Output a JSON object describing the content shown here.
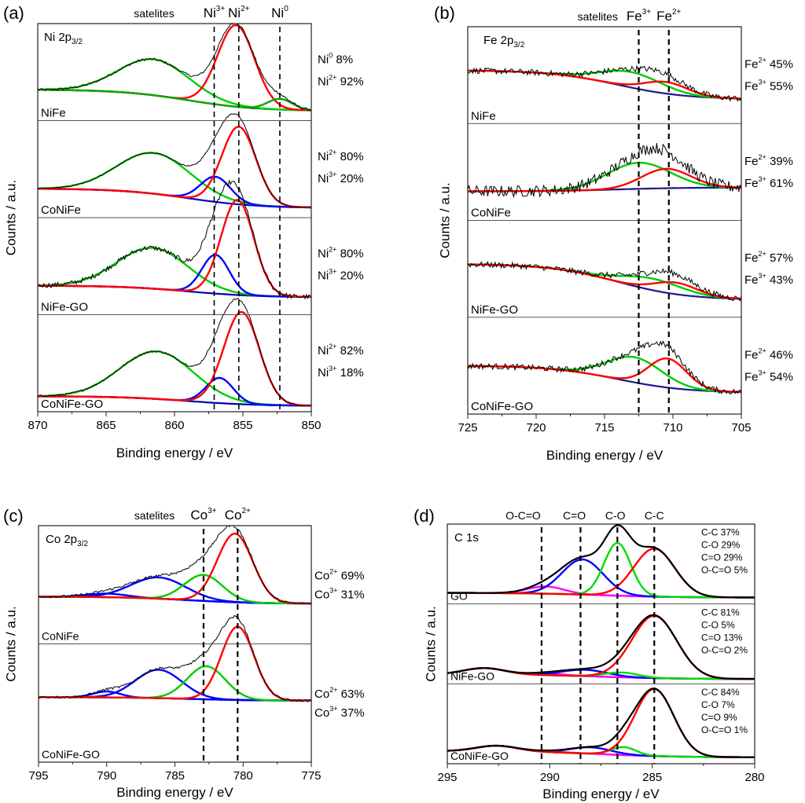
{
  "chart_data": [
    {
      "id": "a",
      "type": "line",
      "panel_label": "(a)",
      "title": "Ni 2p3/2",
      "title_main": "Ni 2p",
      "title_sub": "3/2",
      "xlabel": "Binding energy / eV",
      "ylabel": "Counts / a.u.",
      "xlim": [
        870,
        850
      ],
      "xticks": [
        870,
        865,
        860,
        855,
        850
      ],
      "header_labels": [
        {
          "text": "satelites",
          "sup": "",
          "x": 861.5,
          "color": "#000000",
          "small": true
        },
        {
          "text": "Ni",
          "sup": "3+",
          "x": 857.1,
          "color": "#000000"
        },
        {
          "text": "Ni",
          "sup": "2+",
          "x": 855.3,
          "color": "#000000"
        },
        {
          "text": "Ni",
          "sup": "0",
          "x": 852.3,
          "color": "#000000"
        }
      ],
      "reference_lines": [
        857.1,
        855.3,
        852.3
      ],
      "samples": [
        {
          "name": "NiFe",
          "baseline": {
            "left": 0.32,
            "right": 0.1,
            "color": "#1a1a1a"
          },
          "noise": 0.012,
          "peaks": [
            {
              "label": "satellite",
              "center": 861.5,
              "width": 2.6,
              "height": 0.37,
              "color": "#00cc00"
            },
            {
              "label": "Ni2+",
              "center": 855.5,
              "width": 1.35,
              "height": 0.84,
              "color": "#ff0000"
            },
            {
              "label": "Ni0",
              "center": 852.3,
              "width": 0.9,
              "height": 0.11,
              "color": "#00aa00"
            }
          ],
          "annotations": [
            {
              "species": "Ni",
              "sup": "0",
              "value": "8%"
            },
            {
              "species": "Ni",
              "sup": "2+",
              "value": "92%"
            }
          ]
        },
        {
          "name": "CoNiFe",
          "baseline": {
            "left": 0.3,
            "right": 0.1,
            "color": "#0000cc"
          },
          "noise": 0.006,
          "peaks": [
            {
              "label": "satellite",
              "center": 861.5,
              "width": 2.7,
              "height": 0.42,
              "color": "#00cc00"
            },
            {
              "label": "Ni3+",
              "center": 857.0,
              "width": 1.1,
              "height": 0.26,
              "color": "#0000ff"
            },
            {
              "label": "Ni2+",
              "center": 855.3,
              "width": 1.25,
              "height": 0.8,
              "color": "#ff0000"
            }
          ],
          "annotations": [
            {
              "species": "Ni",
              "sup": "2+",
              "value": "80%"
            },
            {
              "species": "Ni",
              "sup": "3+",
              "value": "20%"
            }
          ]
        },
        {
          "name": "NiFe-GO",
          "baseline": {
            "left": 0.3,
            "right": 0.18,
            "color": "#0000aa"
          },
          "noise": 0.025,
          "peaks": [
            {
              "label": "satellite",
              "center": 861.6,
              "width": 2.6,
              "height": 0.42,
              "color": "#00cc00"
            },
            {
              "label": "Ni3+",
              "center": 857.0,
              "width": 1.0,
              "height": 0.4,
              "color": "#0000ff"
            },
            {
              "label": "Ni2+",
              "center": 855.4,
              "width": 1.2,
              "height": 0.98,
              "color": "#ff0000"
            }
          ],
          "annotations": [
            {
              "species": "Ni",
              "sup": "2+",
              "value": "80%"
            },
            {
              "species": "Ni",
              "sup": "3+",
              "value": "20%"
            }
          ]
        },
        {
          "name": "CoNiFe-GO",
          "baseline": {
            "left": 0.16,
            "right": 0.06,
            "color": "#0000aa"
          },
          "noise": 0.01,
          "peaks": [
            {
              "label": "satellite",
              "center": 861.3,
              "width": 2.7,
              "height": 0.49,
              "color": "#00cc00"
            },
            {
              "label": "Ni3+",
              "center": 856.7,
              "width": 1.0,
              "height": 0.26,
              "color": "#0000ff"
            },
            {
              "label": "Ni2+",
              "center": 855.1,
              "width": 1.3,
              "height": 0.95,
              "color": "#ff0000"
            }
          ],
          "annotations": [
            {
              "species": "Ni",
              "sup": "2+",
              "value": "82%"
            },
            {
              "species": "Ni",
              "sup": "3+",
              "value": "18%"
            }
          ]
        }
      ]
    },
    {
      "id": "b",
      "type": "line",
      "panel_label": "(b)",
      "title": "Fe 2p3/2",
      "title_main": "Fe 2p",
      "title_sub": "3/2",
      "xlabel": "Binding energy / eV",
      "ylabel": "Counts / a.u.",
      "xlim": [
        725,
        705
      ],
      "xticks": [
        725,
        720,
        715,
        710,
        705
      ],
      "header_labels": [
        {
          "text": "satelites",
          "sup": "",
          "x": 715.5,
          "color": "#000000",
          "small": true
        },
        {
          "text": "Fe",
          "sup": "3+",
          "x": 712.5,
          "color": "#000000"
        },
        {
          "text": "Fe",
          "sup": "2+",
          "x": 710.3,
          "color": "#000000"
        }
      ],
      "reference_lines": [
        712.5,
        710.3
      ],
      "samples": [
        {
          "name": "NiFe",
          "baseline": {
            "left": 0.55,
            "right": 0.25,
            "color": "#1a1a8a"
          },
          "noise": 0.03,
          "peaks": [
            {
              "label": "Fe3+",
              "center": 713.0,
              "width": 2.2,
              "height": 0.16,
              "color": "#00cc00"
            },
            {
              "label": "Fe2+",
              "center": 710.5,
              "width": 1.6,
              "height": 0.12,
              "color": "#ff0000"
            }
          ],
          "annotations": [
            {
              "species": "Fe",
              "sup": "2+",
              "value": "45%"
            },
            {
              "species": "Fe",
              "sup": "3+",
              "value": "55%"
            }
          ]
        },
        {
          "name": "CoNiFe",
          "baseline": {
            "left": 0.3,
            "right": 0.34,
            "color": "#1a1a8a"
          },
          "noise": 0.06,
          "peaks": [
            {
              "label": "Fe3+",
              "center": 712.5,
              "width": 2.3,
              "height": 0.27,
              "color": "#00cc00"
            },
            {
              "label": "Fe2+",
              "center": 710.5,
              "width": 1.8,
              "height": 0.2,
              "color": "#ff0000"
            }
          ],
          "annotations": [
            {
              "species": "Fe",
              "sup": "2+",
              "value": "39%"
            },
            {
              "species": "Fe",
              "sup": "3+",
              "value": "61%"
            }
          ]
        },
        {
          "name": "NiFe-GO",
          "baseline": {
            "left": 0.55,
            "right": 0.18,
            "color": "#1a1a8a"
          },
          "noise": 0.03,
          "peaks": [
            {
              "label": "Fe3+",
              "center": 711.5,
              "width": 2.2,
              "height": 0.12,
              "color": "#00cc00"
            },
            {
              "label": "Fe2+",
              "center": 709.8,
              "width": 1.6,
              "height": 0.12,
              "color": "#ff0000"
            }
          ],
          "annotations": [
            {
              "species": "Fe",
              "sup": "2+",
              "value": "57%"
            },
            {
              "species": "Fe",
              "sup": "3+",
              "value": "43%"
            }
          ]
        },
        {
          "name": "CoNiFe-GO",
          "baseline": {
            "left": 0.5,
            "right": 0.22,
            "color": "#1a1a8a"
          },
          "noise": 0.03,
          "peaks": [
            {
              "label": "Fe3+",
              "center": 712.8,
              "width": 2.0,
              "height": 0.26,
              "color": "#00cc00"
            },
            {
              "label": "Fe2+",
              "center": 710.4,
              "width": 1.4,
              "height": 0.3,
              "color": "#ff0000"
            }
          ],
          "annotations": [
            {
              "species": "Fe",
              "sup": "2+",
              "value": "46%"
            },
            {
              "species": "Fe",
              "sup": "3+",
              "value": "54%"
            }
          ]
        }
      ]
    },
    {
      "id": "c",
      "type": "line",
      "panel_label": "(c)",
      "title": "Co 2p3/2",
      "title_main": "Co 2p",
      "title_sub": "3/2",
      "xlabel": "Binding energy / eV",
      "ylabel": "Counts / a.u.",
      "xlim": [
        795,
        775
      ],
      "xticks": [
        795,
        790,
        785,
        780,
        775
      ],
      "header_labels": [
        {
          "text": "satelites",
          "sup": "",
          "x": 786.5,
          "color": "#000000",
          "small": true
        },
        {
          "text": "Co",
          "sup": "3+",
          "x": 782.9,
          "color": "#000000"
        },
        {
          "text": "Co",
          "sup": "2+",
          "x": 780.4,
          "color": "#000000"
        }
      ],
      "reference_lines": [
        782.9,
        780.4
      ],
      "samples": [
        {
          "name": "CoNiFe",
          "baseline": {
            "left": 0.4,
            "right": 0.34,
            "color": "#0000aa"
          },
          "noise": 0.01,
          "peaks": [
            {
              "label": "satellite-2",
              "center": 790.0,
              "width": 1.5,
              "height": 0.03,
              "color": "#0000ff"
            },
            {
              "label": "satellite",
              "center": 786.2,
              "width": 2.0,
              "height": 0.18,
              "color": "#0000ff"
            },
            {
              "label": "Co3+",
              "center": 782.9,
              "width": 1.4,
              "height": 0.22,
              "color": "#00cc00"
            },
            {
              "label": "Co2+",
              "center": 780.6,
              "width": 1.3,
              "height": 0.58,
              "color": "#ff0000"
            }
          ],
          "annotations": [
            {
              "species": "Co",
              "sup": "2+",
              "value": "69%"
            },
            {
              "species": "Co",
              "sup": "3+",
              "value": "31%"
            }
          ]
        },
        {
          "name": "CoNiFe-GO",
          "baseline": {
            "left": 0.55,
            "right": 0.52,
            "color": "#0000aa"
          },
          "noise": 0.01,
          "peaks": [
            {
              "label": "satellite-2",
              "center": 790.0,
              "width": 1.0,
              "height": 0.05,
              "color": "#0000ff"
            },
            {
              "label": "satellite",
              "center": 786.2,
              "width": 1.7,
              "height": 0.24,
              "color": "#0000ff"
            },
            {
              "label": "Co3+",
              "center": 782.7,
              "width": 1.4,
              "height": 0.28,
              "color": "#00cc00"
            },
            {
              "label": "Co2+",
              "center": 780.4,
              "width": 1.2,
              "height": 0.62,
              "color": "#ff0000"
            }
          ],
          "annotations": [
            {
              "species": "Co",
              "sup": "2+",
              "value": "63%"
            },
            {
              "species": "Co",
              "sup": "3+",
              "value": "37%"
            }
          ]
        }
      ]
    },
    {
      "id": "d",
      "type": "line",
      "panel_label": "(d)",
      "title": "C 1s",
      "title_main": "C 1s",
      "title_sub": "",
      "xlabel": "Binding energy / eV",
      "ylabel": "Counts / a.u.",
      "xlim": [
        295,
        280
      ],
      "xticks": [
        295,
        290,
        285,
        280
      ],
      "header_labels": [
        {
          "text": "O-C=O",
          "sup": "",
          "x": 291.3,
          "color": "#ff00ff"
        },
        {
          "text": "C=O",
          "sup": "",
          "x": 288.8,
          "color": "#0000ff"
        },
        {
          "text": "C-O",
          "sup": "",
          "x": 286.8,
          "color": "#00dd00"
        },
        {
          "text": "C-C",
          "sup": "",
          "x": 284.9,
          "color": "#ff0000"
        }
      ],
      "reference_lines": [
        290.4,
        288.5,
        286.7,
        284.9
      ],
      "samples": [
        {
          "name": "GO",
          "baseline": {
            "left": 0.14,
            "right": 0.08,
            "color": "#cc00cc"
          },
          "noise": 0.0,
          "peaks": [
            {
              "label": "O-C=O",
              "center": 290.2,
              "width": 0.9,
              "height": 0.09,
              "color": "#ff00ff"
            },
            {
              "label": "C=O",
              "center": 288.4,
              "width": 1.0,
              "height": 0.44,
              "color": "#0000ff"
            },
            {
              "label": "C-O",
              "center": 286.7,
              "width": 0.65,
              "height": 0.66,
              "color": "#00dd00"
            },
            {
              "label": "C-C",
              "center": 284.9,
              "width": 1.0,
              "height": 0.6,
              "color": "#ff0000"
            }
          ],
          "annotations": [
            {
              "species": "C-C",
              "sup": "",
              "value": "37%"
            },
            {
              "species": "C-O",
              "sup": "",
              "value": "29%"
            },
            {
              "species": "C=O",
              "sup": "",
              "value": "29%"
            },
            {
              "species": "O-C=O",
              "sup": "",
              "value": "5%"
            }
          ]
        },
        {
          "name": "NiFe-GO",
          "baseline": {
            "left": 0.12,
            "right": 0.06,
            "color": "#cc00cc"
          },
          "noise": 0.0,
          "hump": {
            "center": 293.2,
            "width": 1.0,
            "height": 0.08
          },
          "peaks": [
            {
              "label": "O-C=O",
              "center": 290.2,
              "width": 0.9,
              "height": 0.02,
              "color": "#ff00ff"
            },
            {
              "label": "C=O",
              "center": 288.3,
              "width": 1.1,
              "height": 0.08,
              "color": "#0000ff"
            },
            {
              "label": "C-O",
              "center": 286.5,
              "width": 0.8,
              "height": 0.06,
              "color": "#00dd00"
            },
            {
              "label": "C-C",
              "center": 284.9,
              "width": 1.1,
              "height": 0.78,
              "color": "#ff0000"
            }
          ],
          "annotations": [
            {
              "species": "C-C",
              "sup": "",
              "value": "81%"
            },
            {
              "species": "C-O",
              "sup": "",
              "value": "5%"
            },
            {
              "species": "C=O",
              "sup": "",
              "value": "13%"
            },
            {
              "species": "O-C=O",
              "sup": "",
              "value": "2%"
            }
          ]
        },
        {
          "name": "CoNiFe-GO",
          "baseline": {
            "left": 0.16,
            "right": 0.08,
            "color": "#cc00cc"
          },
          "noise": 0.0,
          "hump": {
            "center": 292.6,
            "width": 1.0,
            "height": 0.07
          },
          "peaks": [
            {
              "label": "O-C=O",
              "center": 290.2,
              "width": 0.9,
              "height": 0.01,
              "color": "#ff00ff"
            },
            {
              "label": "C=O",
              "center": 288.0,
              "width": 1.0,
              "height": 0.08,
              "color": "#0000ff"
            },
            {
              "label": "C-O",
              "center": 286.4,
              "width": 0.6,
              "height": 0.1,
              "color": "#00dd00"
            },
            {
              "label": "C-C",
              "center": 284.9,
              "width": 0.95,
              "height": 0.84,
              "color": "#ff0000"
            }
          ],
          "annotations": [
            {
              "species": "C-C",
              "sup": "",
              "value": "84%"
            },
            {
              "species": "C-O",
              "sup": "",
              "value": "7%"
            },
            {
              "species": "C=O",
              "sup": "",
              "value": "9%"
            },
            {
              "species": "O-C=O",
              "sup": "",
              "value": "1%"
            }
          ]
        }
      ]
    }
  ]
}
